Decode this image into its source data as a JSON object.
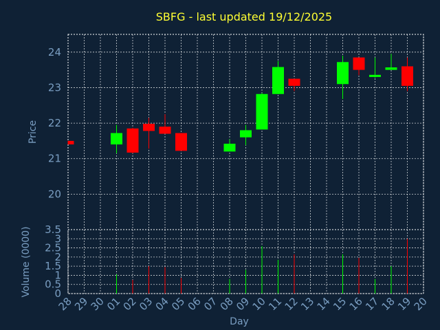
{
  "chart_data": {
    "type": "candlestick",
    "title": "SBFG - last updated 19/12/2025",
    "xlabel": "Day",
    "colors": {
      "background": "#0f2135",
      "title": "#ffff33",
      "axis_text": "#7a9ec2",
      "grid": "#ffffff",
      "up": "#00ff00",
      "down": "#ff0000"
    },
    "x_ticks": [
      "28",
      "29",
      "30",
      "01",
      "02",
      "03",
      "04",
      "05",
      "06",
      "07",
      "08",
      "09",
      "10",
      "11",
      "12",
      "13",
      "14",
      "15",
      "16",
      "17",
      "18",
      "19",
      "20"
    ],
    "price": {
      "ylabel": "Price",
      "ylim": [
        19,
        24.5
      ],
      "yticks": [
        "20",
        "21",
        "22",
        "23",
        "24"
      ],
      "candles": [
        {
          "day": "28",
          "open": 21.5,
          "high": 21.5,
          "low": 21.4,
          "close": 21.4
        },
        {
          "day": "01",
          "open": 21.4,
          "high": 21.95,
          "low": 21.15,
          "close": 21.72
        },
        {
          "day": "02",
          "open": 21.85,
          "high": 21.87,
          "low": 21.15,
          "close": 21.17
        },
        {
          "day": "03",
          "open": 21.98,
          "high": 22.15,
          "low": 21.28,
          "close": 21.78
        },
        {
          "day": "04",
          "open": 21.9,
          "high": 22.25,
          "low": 21.72,
          "close": 21.7
        },
        {
          "day": "05",
          "open": 21.72,
          "high": 21.72,
          "low": 21.22,
          "close": 21.22
        },
        {
          "day": "08",
          "open": 21.2,
          "high": 21.55,
          "low": 21.2,
          "close": 21.42
        },
        {
          "day": "09",
          "open": 21.6,
          "high": 21.95,
          "low": 21.38,
          "close": 21.8
        },
        {
          "day": "10",
          "open": 21.82,
          "high": 22.85,
          "low": 21.82,
          "close": 22.82
        },
        {
          "day": "11",
          "open": 22.82,
          "high": 23.75,
          "low": 22.82,
          "close": 23.58
        },
        {
          "day": "12",
          "open": 23.25,
          "high": 23.25,
          "low": 22.9,
          "close": 23.05
        },
        {
          "day": "15",
          "open": 23.1,
          "high": 23.9,
          "low": 22.68,
          "close": 23.72
        },
        {
          "day": "16",
          "open": 23.85,
          "high": 23.85,
          "low": 23.35,
          "close": 23.5
        },
        {
          "day": "17",
          "open": 23.3,
          "high": 23.85,
          "low": 23.28,
          "close": 23.36
        },
        {
          "day": "18",
          "open": 23.5,
          "high": 23.95,
          "low": 23.5,
          "close": 23.57
        },
        {
          "day": "19",
          "open": 23.6,
          "high": 23.85,
          "low": 22.9,
          "close": 23.05
        }
      ]
    },
    "volume": {
      "ylabel": "Volume (0000)",
      "ylim": [
        0,
        3.5
      ],
      "yticks": [
        "0",
        "0.5",
        "1",
        "1.5",
        "2",
        "2.5",
        "3",
        "3.5"
      ],
      "bars": [
        {
          "day": "01",
          "value": 1.05,
          "dir": "up"
        },
        {
          "day": "02",
          "value": 0.75,
          "dir": "down"
        },
        {
          "day": "03",
          "value": 1.5,
          "dir": "down"
        },
        {
          "day": "04",
          "value": 1.45,
          "dir": "down"
        },
        {
          "day": "05",
          "value": 0.85,
          "dir": "down"
        },
        {
          "day": "08",
          "value": 0.8,
          "dir": "up"
        },
        {
          "day": "09",
          "value": 1.3,
          "dir": "up"
        },
        {
          "day": "10",
          "value": 2.6,
          "dir": "up"
        },
        {
          "day": "11",
          "value": 1.85,
          "dir": "up"
        },
        {
          "day": "12",
          "value": 2.15,
          "dir": "down"
        },
        {
          "day": "15",
          "value": 2.15,
          "dir": "up"
        },
        {
          "day": "16",
          "value": 1.95,
          "dir": "down"
        },
        {
          "day": "17",
          "value": 0.8,
          "dir": "up"
        },
        {
          "day": "18",
          "value": 1.5,
          "dir": "up"
        },
        {
          "day": "19",
          "value": 3.0,
          "dir": "down"
        }
      ]
    }
  }
}
